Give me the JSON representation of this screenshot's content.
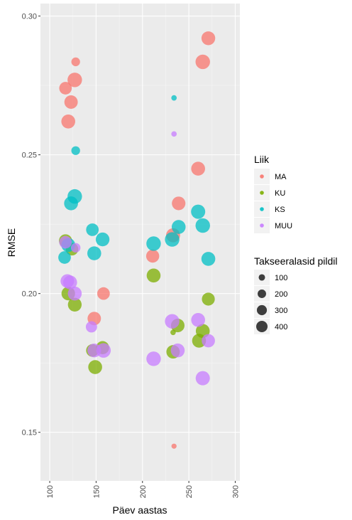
{
  "chart_data": {
    "type": "scatter",
    "xlabel": "Päev aastas",
    "ylabel": "RMSE",
    "xlim": [
      90,
      305
    ],
    "ylim": [
      0.1325,
      0.3045
    ],
    "xticks": [
      100,
      150,
      200,
      250,
      300
    ],
    "xtick_labels": [
      "100",
      "150",
      "200",
      "250",
      "300"
    ],
    "yticks": [
      0.15,
      0.2,
      0.25,
      0.3
    ],
    "ytick_labels": [
      "0.15",
      "0.20",
      "0.25",
      "0.30"
    ],
    "grid": true,
    "legend_position": "right",
    "color_legend": {
      "title": "Liik",
      "entries": [
        {
          "label": "MA",
          "color": "#F8766D"
        },
        {
          "label": "KU",
          "color": "#7CAE00"
        },
        {
          "label": "KS",
          "color": "#00BFC4"
        },
        {
          "label": "MUU",
          "color": "#C77CFF"
        }
      ]
    },
    "size_legend": {
      "title": "Takseeralasid pildil",
      "entries": [
        {
          "label": "100",
          "value": 100
        },
        {
          "label": "200",
          "value": 200
        },
        {
          "label": "300",
          "value": 300
        },
        {
          "label": "400",
          "value": 400
        }
      ]
    },
    "series": [
      {
        "name": "MA",
        "color": "#F8766D",
        "points": [
          {
            "x": 117,
            "y": 0.274,
            "size": 300
          },
          {
            "x": 120,
            "y": 0.262,
            "size": 380
          },
          {
            "x": 123,
            "y": 0.269,
            "size": 350
          },
          {
            "x": 127,
            "y": 0.277,
            "size": 420
          },
          {
            "x": 128,
            "y": 0.2835,
            "size": 120
          },
          {
            "x": 158,
            "y": 0.2,
            "size": 300
          },
          {
            "x": 148,
            "y": 0.191,
            "size": 350
          },
          {
            "x": 211,
            "y": 0.2135,
            "size": 330
          },
          {
            "x": 233,
            "y": 0.221,
            "size": 390
          },
          {
            "x": 239,
            "y": 0.2325,
            "size": 360
          },
          {
            "x": 260,
            "y": 0.245,
            "size": 380
          },
          {
            "x": 265,
            "y": 0.2835,
            "size": 420
          },
          {
            "x": 271,
            "y": 0.292,
            "size": 370
          },
          {
            "x": 234,
            "y": 0.145,
            "size": 25
          }
        ]
      },
      {
        "name": "KU",
        "color": "#7CAE00",
        "points": [
          {
            "x": 117,
            "y": 0.219,
            "size": 330
          },
          {
            "x": 120,
            "y": 0.2,
            "size": 360
          },
          {
            "x": 124,
            "y": 0.216,
            "size": 300
          },
          {
            "x": 127,
            "y": 0.196,
            "size": 370
          },
          {
            "x": 146,
            "y": 0.1795,
            "size": 300
          },
          {
            "x": 149,
            "y": 0.1735,
            "size": 380
          },
          {
            "x": 157,
            "y": 0.1805,
            "size": 330
          },
          {
            "x": 212,
            "y": 0.2065,
            "size": 380
          },
          {
            "x": 233,
            "y": 0.186,
            "size": 30
          },
          {
            "x": 233,
            "y": 0.179,
            "size": 350
          },
          {
            "x": 238,
            "y": 0.1885,
            "size": 360
          },
          {
            "x": 261,
            "y": 0.183,
            "size": 380
          },
          {
            "x": 265,
            "y": 0.1865,
            "size": 380
          },
          {
            "x": 271,
            "y": 0.198,
            "size": 320
          }
        ]
      },
      {
        "name": "KS",
        "color": "#00BFC4",
        "points": [
          {
            "x": 116,
            "y": 0.213,
            "size": 300
          },
          {
            "x": 120,
            "y": 0.2175,
            "size": 380
          },
          {
            "x": 123,
            "y": 0.2325,
            "size": 380
          },
          {
            "x": 127,
            "y": 0.235,
            "size": 420
          },
          {
            "x": 128,
            "y": 0.2515,
            "size": 120
          },
          {
            "x": 146,
            "y": 0.223,
            "size": 300
          },
          {
            "x": 148,
            "y": 0.2145,
            "size": 380
          },
          {
            "x": 157,
            "y": 0.2195,
            "size": 370
          },
          {
            "x": 212,
            "y": 0.218,
            "size": 420
          },
          {
            "x": 232,
            "y": 0.2195,
            "size": 420
          },
          {
            "x": 234,
            "y": 0.2705,
            "size": 30
          },
          {
            "x": 239,
            "y": 0.224,
            "size": 380
          },
          {
            "x": 260,
            "y": 0.2295,
            "size": 400
          },
          {
            "x": 265,
            "y": 0.2245,
            "size": 420
          },
          {
            "x": 271,
            "y": 0.2125,
            "size": 380
          }
        ]
      },
      {
        "name": "MUU",
        "color": "#C77CFF",
        "points": [
          {
            "x": 117,
            "y": 0.2185,
            "size": 300
          },
          {
            "x": 119,
            "y": 0.2045,
            "size": 360
          },
          {
            "x": 122,
            "y": 0.204,
            "size": 380
          },
          {
            "x": 127,
            "y": 0.2,
            "size": 380
          },
          {
            "x": 128,
            "y": 0.2165,
            "size": 150
          },
          {
            "x": 145,
            "y": 0.188,
            "size": 230
          },
          {
            "x": 148,
            "y": 0.1795,
            "size": 370
          },
          {
            "x": 158,
            "y": 0.1795,
            "size": 420
          },
          {
            "x": 212,
            "y": 0.1765,
            "size": 420
          },
          {
            "x": 232,
            "y": 0.19,
            "size": 420
          },
          {
            "x": 234,
            "y": 0.2575,
            "size": 30
          },
          {
            "x": 238,
            "y": 0.1795,
            "size": 380
          },
          {
            "x": 260,
            "y": 0.1905,
            "size": 380
          },
          {
            "x": 265,
            "y": 0.1695,
            "size": 400
          },
          {
            "x": 271,
            "y": 0.183,
            "size": 340
          }
        ]
      }
    ]
  }
}
